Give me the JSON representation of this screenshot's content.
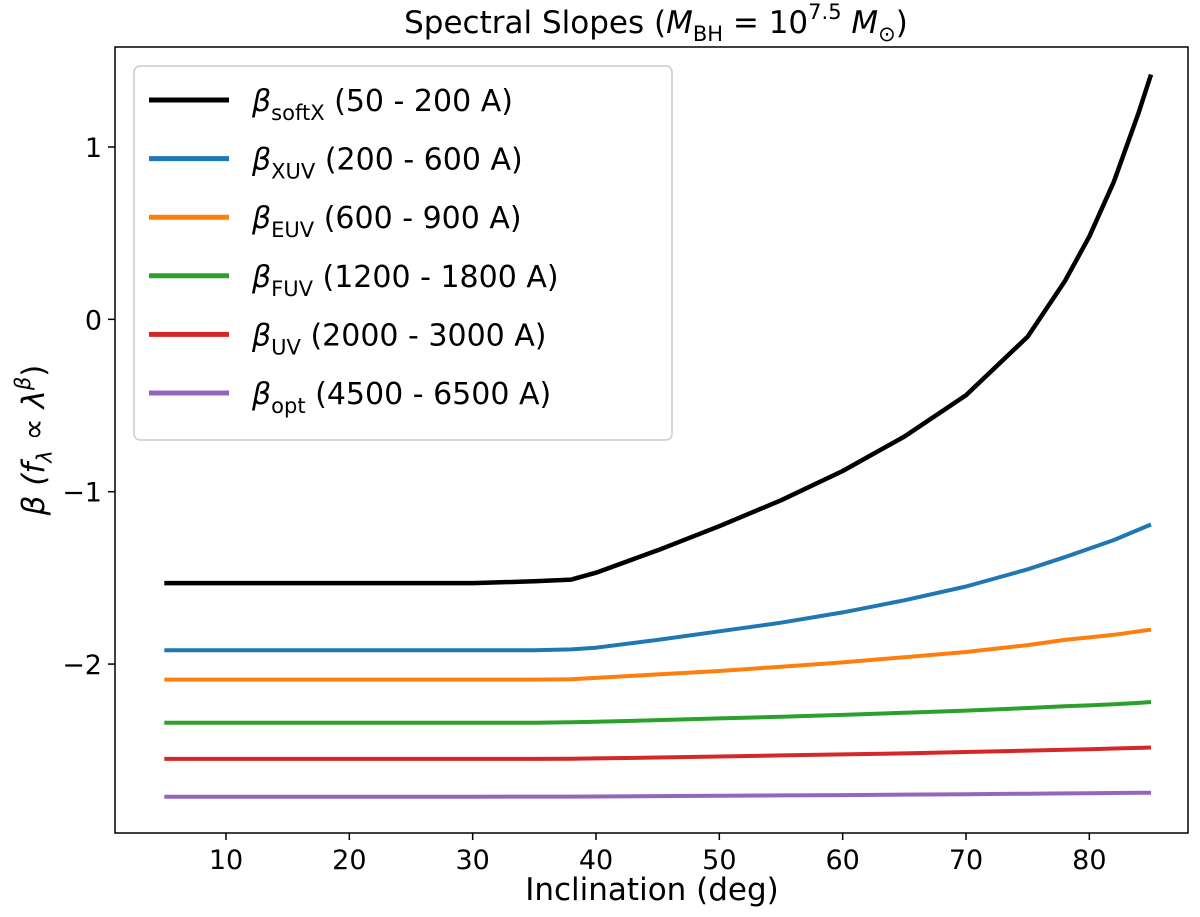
{
  "chart_data": {
    "type": "line",
    "title": {
      "prefix": "Spectral Slopes (",
      "var": "M",
      "var_sub": "BH",
      "eq": " = 10",
      "exp": "7.5",
      "unit": " M",
      "unit_sub": "⊙",
      "suffix": ")"
    },
    "xlabel": "Inclination (deg)",
    "ylabel": {
      "sym": "β (",
      "f": "f",
      "f_sub": "λ",
      "prop": " ∝ λ",
      "exp": "β",
      "close": ")"
    },
    "xlim": [
      1,
      88
    ],
    "ylim": [
      -2.98,
      1.58
    ],
    "xticks": [
      10,
      20,
      30,
      40,
      50,
      60,
      70,
      80
    ],
    "yticks": [
      -2,
      -1,
      0,
      1
    ],
    "ytick_labels": [
      "−2",
      "−1",
      "0",
      "1"
    ],
    "grid": false,
    "legend_position": "upper-left",
    "x": [
      5,
      10,
      15,
      20,
      25,
      30,
      35,
      38,
      40,
      45,
      50,
      55,
      60,
      65,
      70,
      75,
      78,
      80,
      82,
      84,
      85
    ],
    "series": [
      {
        "name": "softX",
        "symbol": "β",
        "sub": "softX",
        "range": " (50 - 200 A)",
        "color": "#000000",
        "width": 4.5,
        "values": [
          -1.53,
          -1.53,
          -1.53,
          -1.53,
          -1.53,
          -1.53,
          -1.52,
          -1.51,
          -1.47,
          -1.34,
          -1.2,
          -1.05,
          -0.88,
          -0.68,
          -0.44,
          -0.1,
          0.22,
          0.48,
          0.8,
          1.2,
          1.42
        ]
      },
      {
        "name": "XUV",
        "symbol": "β",
        "sub": "XUV",
        "range": " (200 - 600 A)",
        "color": "#1f77b4",
        "width": 4,
        "values": [
          -1.92,
          -1.92,
          -1.92,
          -1.92,
          -1.92,
          -1.92,
          -1.92,
          -1.915,
          -1.905,
          -1.86,
          -1.81,
          -1.76,
          -1.7,
          -1.63,
          -1.55,
          -1.45,
          -1.38,
          -1.33,
          -1.28,
          -1.22,
          -1.19
        ]
      },
      {
        "name": "EUV",
        "symbol": "β",
        "sub": "EUV",
        "range": " (600 - 900 A)",
        "color": "#ff7f0e",
        "width": 4,
        "values": [
          -2.09,
          -2.09,
          -2.09,
          -2.09,
          -2.09,
          -2.09,
          -2.09,
          -2.088,
          -2.08,
          -2.06,
          -2.04,
          -2.015,
          -1.99,
          -1.96,
          -1.93,
          -1.89,
          -1.86,
          -1.845,
          -1.83,
          -1.81,
          -1.8
        ]
      },
      {
        "name": "FUV",
        "symbol": "β",
        "sub": "FUV",
        "range": " (1200 - 1800 A)",
        "color": "#2ca02c",
        "width": 4,
        "values": [
          -2.34,
          -2.34,
          -2.34,
          -2.34,
          -2.34,
          -2.34,
          -2.34,
          -2.338,
          -2.335,
          -2.325,
          -2.315,
          -2.305,
          -2.295,
          -2.282,
          -2.27,
          -2.255,
          -2.245,
          -2.24,
          -2.233,
          -2.225,
          -2.22
        ]
      },
      {
        "name": "UV",
        "symbol": "β",
        "sub": "UV",
        "range": "  (2000 - 3000 A)",
        "color": "#d62728",
        "width": 4,
        "values": [
          -2.55,
          -2.55,
          -2.55,
          -2.55,
          -2.55,
          -2.55,
          -2.55,
          -2.549,
          -2.547,
          -2.542,
          -2.536,
          -2.53,
          -2.524,
          -2.518,
          -2.51,
          -2.502,
          -2.497,
          -2.494,
          -2.49,
          -2.486,
          -2.484
        ]
      },
      {
        "name": "opt",
        "symbol": "β",
        "sub": "opt",
        "range": " (4500 - 6500 A)",
        "color": "#9467bd",
        "width": 4,
        "values": [
          -2.77,
          -2.77,
          -2.77,
          -2.77,
          -2.77,
          -2.77,
          -2.769,
          -2.769,
          -2.768,
          -2.766,
          -2.764,
          -2.762,
          -2.76,
          -2.757,
          -2.755,
          -2.752,
          -2.75,
          -2.749,
          -2.748,
          -2.747,
          -2.746
        ]
      }
    ]
  }
}
